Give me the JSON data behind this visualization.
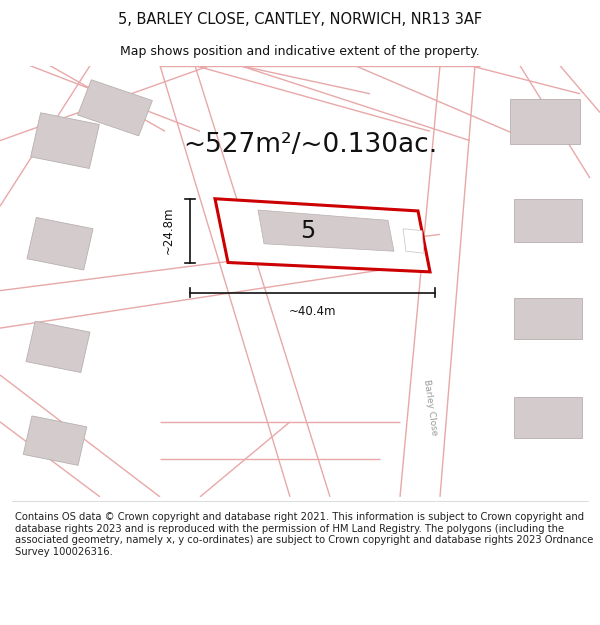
{
  "title": "5, BARLEY CLOSE, CANTLEY, NORWICH, NR13 3AF",
  "subtitle": "Map shows position and indicative extent of the property.",
  "area_label": "~527m²/~0.130ac.",
  "width_label": "~40.4m",
  "height_label": "~24.8m",
  "property_number": "5",
  "footer": "Contains OS data © Crown copyright and database right 2021. This information is subject to Crown copyright and database rights 2023 and is reproduced with the permission of HM Land Registry. The polygons (including the associated geometry, namely x, y co-ordinates) are subject to Crown copyright and database rights 2023 Ordnance Survey 100026316.",
  "bg_color": "#f5eeee",
  "road_color": "#e8a8a8",
  "building_color": "#d4cccc",
  "building_edge": "#b8b0b0",
  "prop_color": "#cc0000",
  "prop_fill": "#ffffff",
  "title_fontsize": 10.5,
  "subtitle_fontsize": 9,
  "area_fontsize": 19,
  "label_fontsize": 8.5,
  "number_fontsize": 17,
  "footer_fontsize": 7.2,
  "road_lw": 1.0,
  "prop_lw": 2.2
}
